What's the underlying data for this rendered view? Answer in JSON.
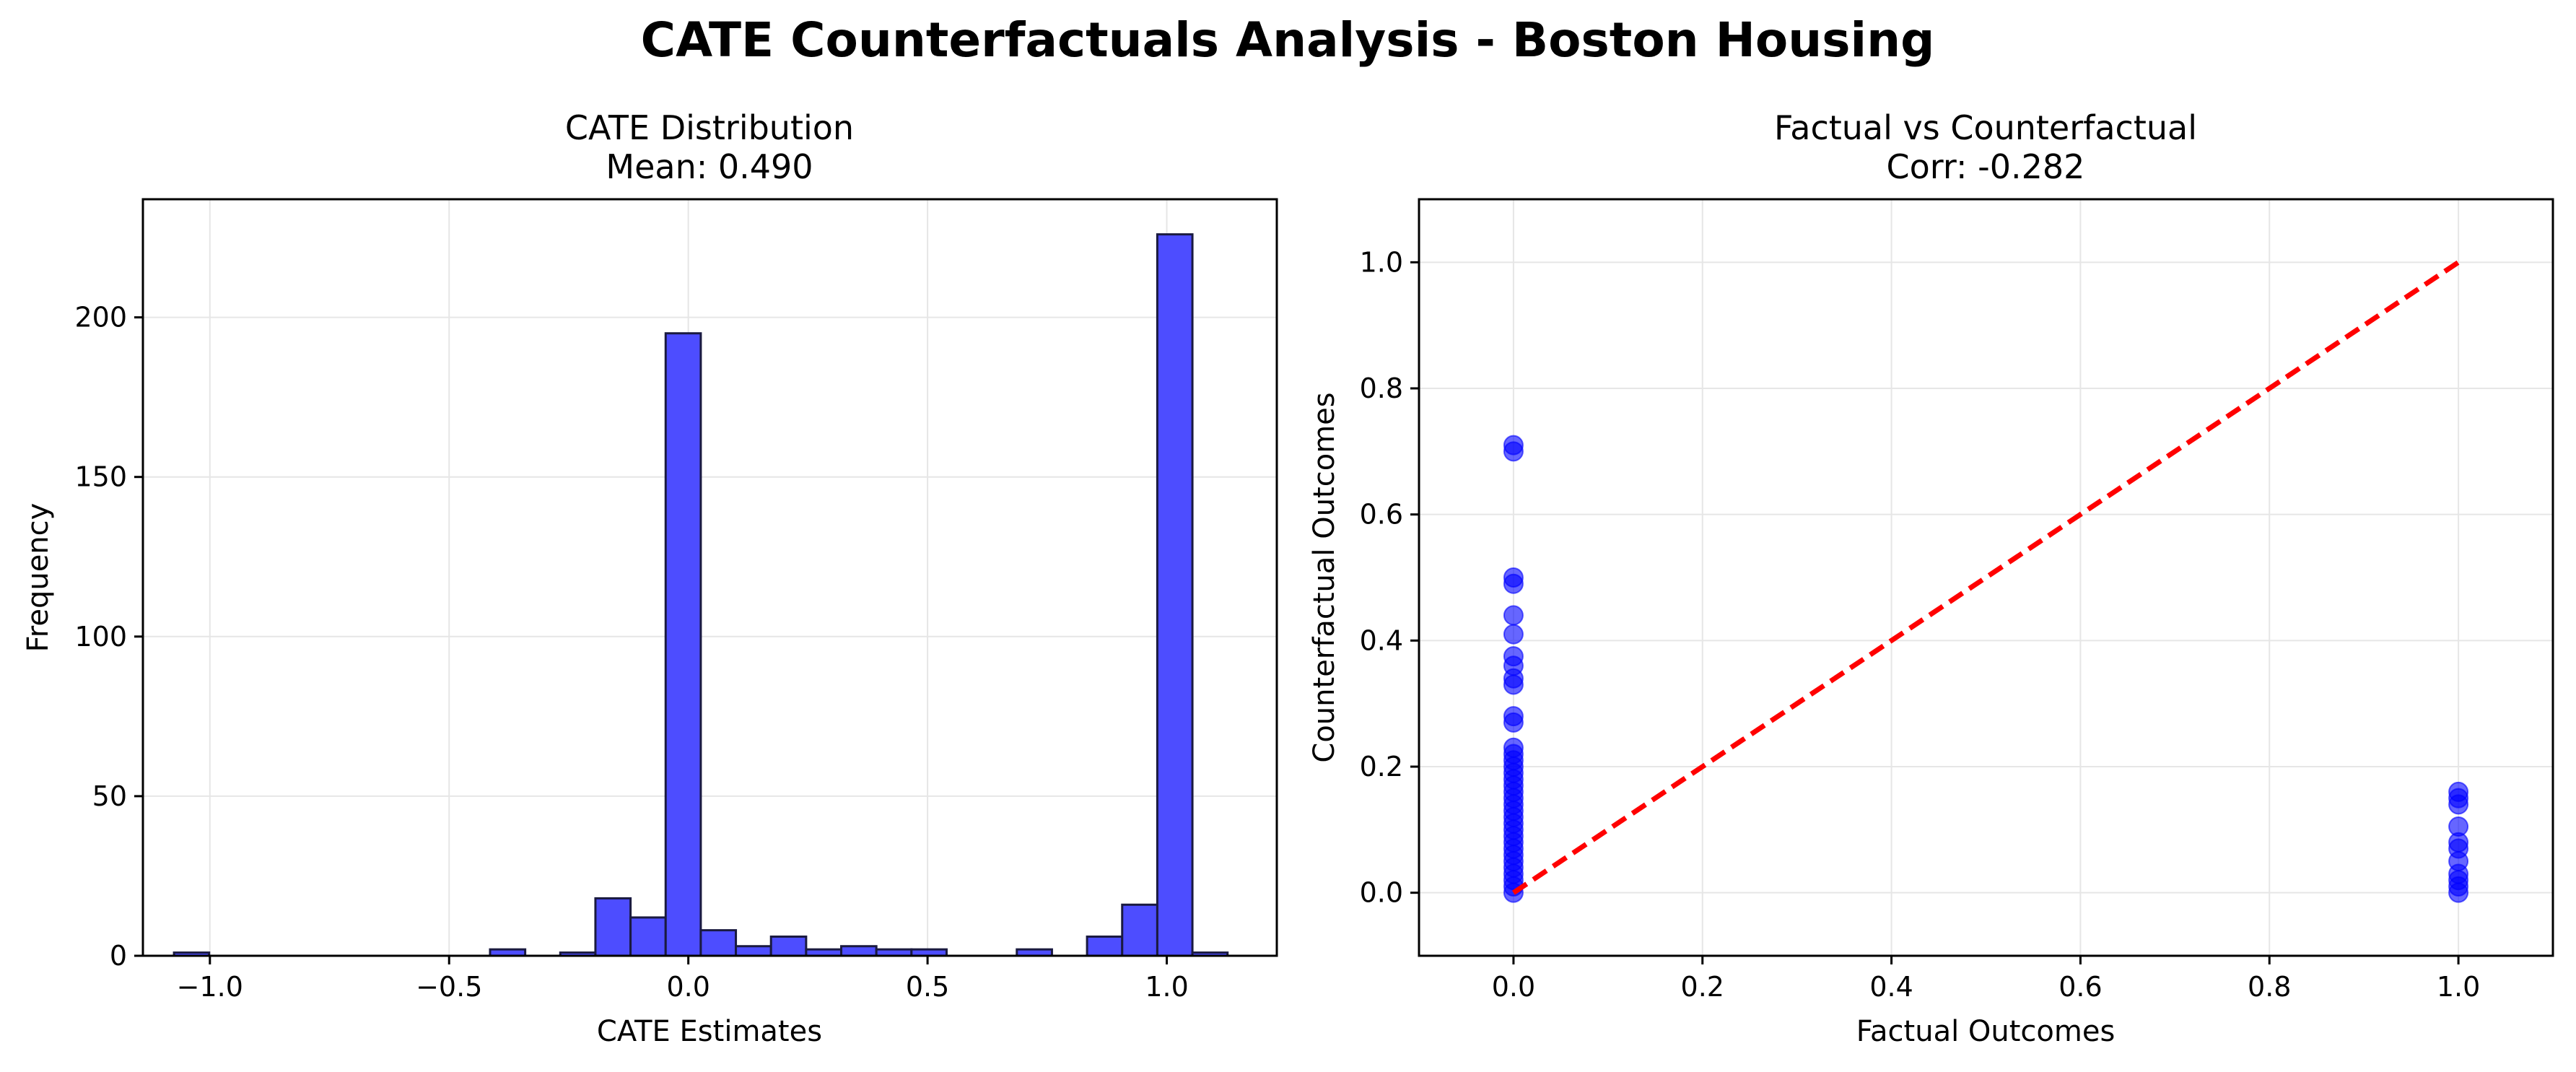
{
  "figure": {
    "suptitle": "CATE Counterfactuals Analysis - Boston Housing"
  },
  "colors": {
    "bar_fill": "#4d4dff",
    "bar_edge": "#1a1a40",
    "scatter": "#0000ff",
    "diagonal": "#ff0000",
    "grid": "#e6e6e6"
  },
  "chart_data": [
    {
      "type": "bar",
      "title_line1": "CATE Distribution",
      "title_line2": "Mean: 0.490",
      "xlabel": "CATE Estimates",
      "ylabel": "Frequency",
      "xlim": [
        -1.14,
        1.23
      ],
      "ylim": [
        0,
        237
      ],
      "grid": true,
      "xticks": [
        -1.0,
        -0.5,
        0.0,
        0.5,
        1.0
      ],
      "xtick_labels": [
        "−1.0",
        "−0.5",
        "0.0",
        "0.5",
        "1.0"
      ],
      "yticks": [
        0,
        50,
        100,
        150,
        200
      ],
      "ytick_labels": [
        "0",
        "50",
        "100",
        "150",
        "200"
      ],
      "bins": {
        "start": -1.075,
        "width": 0.0734,
        "counts": [
          1,
          0,
          0,
          0,
          0,
          0,
          0,
          0,
          0,
          2,
          0,
          1,
          18,
          12,
          195,
          8,
          3,
          6,
          2,
          3,
          2,
          2,
          0,
          0,
          2,
          0,
          6,
          16,
          226,
          1
        ]
      }
    },
    {
      "type": "scatter",
      "title_line1": "Factual vs Counterfactual",
      "title_line2": "Corr: -0.282",
      "xlabel": "Factual Outcomes",
      "ylabel": "Counterfactual Outcomes",
      "xlim": [
        -0.1,
        1.1
      ],
      "ylim": [
        -0.1,
        1.1
      ],
      "grid": true,
      "xticks": [
        0.0,
        0.2,
        0.4,
        0.6,
        0.8,
        1.0
      ],
      "xtick_labels": [
        "0.0",
        "0.2",
        "0.4",
        "0.6",
        "0.8",
        "1.0"
      ],
      "yticks": [
        0.0,
        0.2,
        0.4,
        0.6,
        0.8,
        1.0
      ],
      "ytick_labels": [
        "0.0",
        "0.2",
        "0.4",
        "0.6",
        "0.8",
        "1.0"
      ],
      "reference_line": {
        "x": [
          0,
          1
        ],
        "y": [
          0,
          1
        ],
        "style": "dashed"
      },
      "points": [
        {
          "x": 0,
          "y": 0.71
        },
        {
          "x": 0,
          "y": 0.7
        },
        {
          "x": 0,
          "y": 0.5
        },
        {
          "x": 0,
          "y": 0.49
        },
        {
          "x": 0,
          "y": 0.44
        },
        {
          "x": 0,
          "y": 0.41
        },
        {
          "x": 0,
          "y": 0.375
        },
        {
          "x": 0,
          "y": 0.36
        },
        {
          "x": 0,
          "y": 0.34
        },
        {
          "x": 0,
          "y": 0.33
        },
        {
          "x": 0,
          "y": 0.28
        },
        {
          "x": 0,
          "y": 0.27
        },
        {
          "x": 0,
          "y": 0.23
        },
        {
          "x": 0,
          "y": 0.22
        },
        {
          "x": 0,
          "y": 0.21
        },
        {
          "x": 0,
          "y": 0.2
        },
        {
          "x": 0,
          "y": 0.19
        },
        {
          "x": 0,
          "y": 0.18
        },
        {
          "x": 0,
          "y": 0.17
        },
        {
          "x": 0,
          "y": 0.16
        },
        {
          "x": 0,
          "y": 0.15
        },
        {
          "x": 0,
          "y": 0.14
        },
        {
          "x": 0,
          "y": 0.13
        },
        {
          "x": 0,
          "y": 0.12
        },
        {
          "x": 0,
          "y": 0.11
        },
        {
          "x": 0,
          "y": 0.1
        },
        {
          "x": 0,
          "y": 0.09
        },
        {
          "x": 0,
          "y": 0.08
        },
        {
          "x": 0,
          "y": 0.07
        },
        {
          "x": 0,
          "y": 0.06
        },
        {
          "x": 0,
          "y": 0.05
        },
        {
          "x": 0,
          "y": 0.04
        },
        {
          "x": 0,
          "y": 0.03
        },
        {
          "x": 0,
          "y": 0.02
        },
        {
          "x": 0,
          "y": 0.01
        },
        {
          "x": 0,
          "y": 0.0
        },
        {
          "x": 1,
          "y": 0.16
        },
        {
          "x": 1,
          "y": 0.15
        },
        {
          "x": 1,
          "y": 0.14
        },
        {
          "x": 1,
          "y": 0.105
        },
        {
          "x": 1,
          "y": 0.08
        },
        {
          "x": 1,
          "y": 0.07
        },
        {
          "x": 1,
          "y": 0.05
        },
        {
          "x": 1,
          "y": 0.03
        },
        {
          "x": 1,
          "y": 0.02
        },
        {
          "x": 1,
          "y": 0.01
        },
        {
          "x": 1,
          "y": 0.0
        }
      ]
    }
  ]
}
